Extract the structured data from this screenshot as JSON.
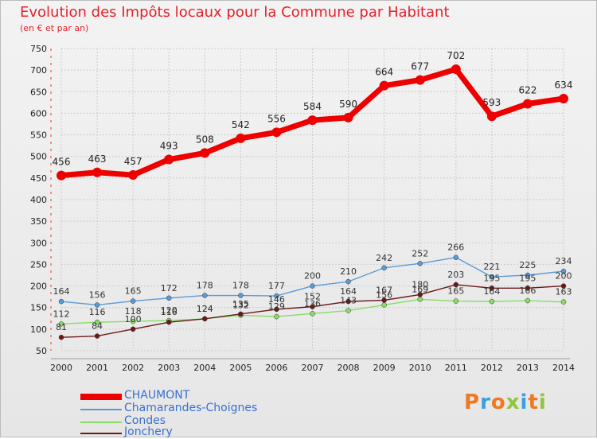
{
  "chart_data": {
    "type": "line",
    "title": "Evolution des Impôts locaux pour la Commune par Habitant",
    "subtitle": "(en € et par an)",
    "x": [
      "2000",
      "2001",
      "2002",
      "2003",
      "2004",
      "2005",
      "2006",
      "2007",
      "2008",
      "2009",
      "2010",
      "2011",
      "2012",
      "2013",
      "2014"
    ],
    "yticks": [
      50,
      100,
      150,
      200,
      250,
      300,
      350,
      400,
      450,
      500,
      550,
      600,
      650,
      700,
      750
    ],
    "ylim": [
      50,
      750
    ],
    "grid": true,
    "legend_position": "bottom-left",
    "series": [
      {
        "name": "CHAUMONT",
        "color": "#ee0000",
        "width": 7,
        "values": [
          456,
          463,
          457,
          493,
          508,
          542,
          556,
          584,
          590,
          664,
          677,
          702,
          593,
          622,
          634
        ],
        "labels": [
          "456",
          "463",
          "457",
          "493",
          "508",
          "542",
          "556",
          "584",
          "590",
          "664",
          "677",
          "702",
          "593",
          "622",
          "634"
        ]
      },
      {
        "name": "Chamarandes-Choignes",
        "color": "#5b9bd5",
        "width": 1.4,
        "values": [
          164,
          156,
          165,
          172,
          178,
          178,
          177,
          200,
          210,
          242,
          252,
          266,
          221,
          225,
          234
        ],
        "labels": [
          "164",
          "156",
          "165",
          "172",
          "178",
          "178",
          "177",
          "200",
          "210",
          "242",
          "252",
          "266",
          "221",
          "225",
          "234"
        ]
      },
      {
        "name": "Condes",
        "color": "#88dd66",
        "width": 1.4,
        "values": [
          112,
          116,
          118,
          120,
          124,
          132,
          129,
          136,
          143,
          156,
          169,
          165,
          164,
          166,
          163
        ],
        "labels": [
          "112",
          "116",
          "118",
          "120",
          "124",
          "132",
          "129",
          "136",
          "143",
          "156",
          "169",
          "165",
          "164",
          "166",
          "163"
        ]
      },
      {
        "name": "Jonchery",
        "color": "#6b1a1a",
        "width": 1.4,
        "values": [
          81,
          84,
          100,
          116,
          124,
          135,
          146,
          152,
          164,
          167,
          180,
          203,
          195,
          195,
          200
        ],
        "labels": [
          "81",
          "84",
          "100",
          "116",
          "124",
          "135",
          "146",
          "152",
          "164",
          "167",
          "180",
          "203",
          "195",
          "195",
          "200"
        ]
      }
    ]
  },
  "logo": {
    "text": "Proxiti",
    "colors": [
      "#f07820",
      "#3aa0e0",
      "#f07820",
      "#8fc63f",
      "#3aa0e0",
      "#f07820",
      "#8fc63f"
    ]
  }
}
